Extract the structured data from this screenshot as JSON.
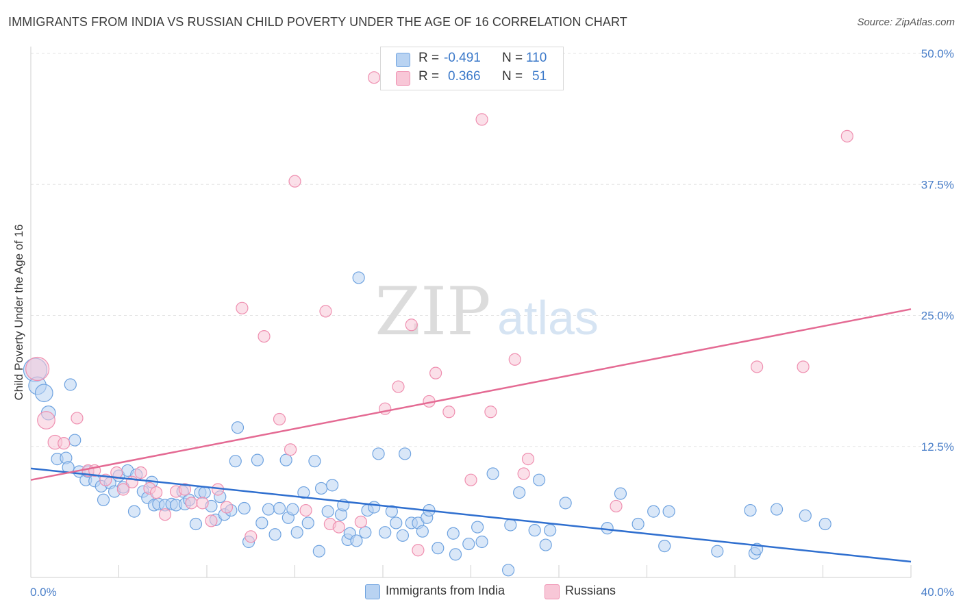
{
  "title": "IMMIGRANTS FROM INDIA VS RUSSIAN CHILD POVERTY UNDER THE AGE OF 16 CORRELATION CHART",
  "source": "Source: ZipAtlas.com",
  "watermark": {
    "zip": "ZIP",
    "atlas": "atlas"
  },
  "legend_top": [
    {
      "r_label": "R = ",
      "r_value": "-0.491",
      "n_label": "N = ",
      "n_value": "110",
      "color": "#6fa3e0"
    },
    {
      "r_label": "R = ",
      "r_value": "0.366",
      "n_label": "N = ",
      "n_value": "51",
      "color": "#ef8fb0"
    }
  ],
  "chart_data": {
    "type": "scatter",
    "title": "IMMIGRANTS FROM INDIA VS RUSSIAN CHILD POVERTY UNDER THE AGE OF 16 CORRELATION CHART",
    "xlabel": "",
    "ylabel": "Child Poverty Under the Age of 16",
    "xlim": [
      0,
      40
    ],
    "ylim": [
      0,
      50
    ],
    "x_tick_labels": [
      {
        "value": 0,
        "label": "0.0%"
      },
      {
        "value": 40,
        "label": "40.0%"
      }
    ],
    "y_tick_labels": [
      {
        "value": 50,
        "label": "50.0%"
      },
      {
        "value": 37.5,
        "label": "37.5%"
      },
      {
        "value": 25,
        "label": "25.0%"
      },
      {
        "value": 12.5,
        "label": "12.5%"
      }
    ],
    "grid": true,
    "legend_position": "bottom",
    "series": [
      {
        "name": "Immigrants from India",
        "color": "#6fa3e0",
        "fill": "#b9d3f2",
        "trend": {
          "x": [
            0,
            40
          ],
          "y": [
            10.4,
            1.5
          ],
          "color": "#2f6fcf"
        },
        "points": [
          [
            0.2,
            19.8,
            2
          ],
          [
            0.3,
            18.3,
            1.5
          ],
          [
            0.6,
            17.6,
            1.5
          ],
          [
            0.8,
            15.7,
            1.2
          ],
          [
            1.8,
            18.4,
            1
          ],
          [
            1.2,
            11.3,
            1
          ],
          [
            1.6,
            11.4,
            1
          ],
          [
            1.7,
            10.5,
            1
          ],
          [
            2.0,
            13.1,
            1
          ],
          [
            2.2,
            10.1,
            1
          ],
          [
            2.5,
            9.3,
            1
          ],
          [
            2.6,
            10.1,
            1
          ],
          [
            2.9,
            9.2,
            1
          ],
          [
            3.2,
            8.7,
            1
          ],
          [
            3.3,
            7.4,
            1
          ],
          [
            3.6,
            9.0,
            1
          ],
          [
            3.8,
            8.2,
            1
          ],
          [
            4.0,
            9.7,
            1
          ],
          [
            4.2,
            8.6,
            1
          ],
          [
            4.4,
            10.2,
            1
          ],
          [
            4.7,
            6.3,
            1
          ],
          [
            4.8,
            9.8,
            1
          ],
          [
            5.1,
            8.2,
            1
          ],
          [
            5.3,
            7.6,
            1
          ],
          [
            5.5,
            9.1,
            1
          ],
          [
            5.6,
            6.9,
            1
          ],
          [
            5.8,
            7.0,
            1
          ],
          [
            6.1,
            6.9,
            1
          ],
          [
            6.4,
            7.0,
            1
          ],
          [
            6.6,
            6.9,
            1
          ],
          [
            6.9,
            8.2,
            1
          ],
          [
            7.0,
            7.0,
            1
          ],
          [
            7.2,
            7.4,
            1
          ],
          [
            7.5,
            5.1,
            1
          ],
          [
            7.7,
            8.1,
            1
          ],
          [
            7.9,
            8.1,
            1
          ],
          [
            8.2,
            6.8,
            1
          ],
          [
            8.4,
            5.5,
            1
          ],
          [
            8.6,
            7.7,
            1
          ],
          [
            8.8,
            6.0,
            1
          ],
          [
            9.1,
            6.4,
            1
          ],
          [
            9.3,
            11.1,
            1
          ],
          [
            9.4,
            14.3,
            1
          ],
          [
            9.7,
            6.6,
            1
          ],
          [
            9.9,
            3.4,
            1
          ],
          [
            10.3,
            11.2,
            1
          ],
          [
            10.5,
            5.2,
            1
          ],
          [
            10.8,
            6.5,
            1
          ],
          [
            11.1,
            4.1,
            1
          ],
          [
            11.3,
            6.6,
            1
          ],
          [
            11.6,
            11.2,
            1
          ],
          [
            11.7,
            5.7,
            1
          ],
          [
            11.9,
            6.5,
            1
          ],
          [
            12.1,
            4.3,
            1
          ],
          [
            12.4,
            8.1,
            1
          ],
          [
            12.6,
            5.2,
            1
          ],
          [
            12.9,
            11.1,
            1
          ],
          [
            13.1,
            2.5,
            1
          ],
          [
            13.2,
            8.5,
            1
          ],
          [
            13.5,
            6.3,
            1
          ],
          [
            13.7,
            8.8,
            1
          ],
          [
            14.1,
            6.0,
            1
          ],
          [
            14.2,
            6.9,
            1
          ],
          [
            14.4,
            3.6,
            1
          ],
          [
            14.5,
            4.2,
            1
          ],
          [
            14.8,
            3.5,
            1
          ],
          [
            14.9,
            28.6,
            1
          ],
          [
            15.2,
            4.3,
            1
          ],
          [
            15.3,
            6.4,
            1
          ],
          [
            15.6,
            6.7,
            1
          ],
          [
            15.8,
            11.8,
            1
          ],
          [
            16.1,
            4.3,
            1
          ],
          [
            16.4,
            6.3,
            1
          ],
          [
            16.6,
            5.2,
            1
          ],
          [
            16.9,
            4.0,
            1
          ],
          [
            17.0,
            11.8,
            1
          ],
          [
            17.3,
            5.2,
            1
          ],
          [
            17.6,
            5.2,
            1
          ],
          [
            17.8,
            4.4,
            1
          ],
          [
            18.0,
            5.7,
            1
          ],
          [
            18.1,
            6.4,
            1
          ],
          [
            18.5,
            2.8,
            1
          ],
          [
            19.2,
            4.2,
            1
          ],
          [
            19.3,
            2.2,
            1
          ],
          [
            19.9,
            3.2,
            1
          ],
          [
            20.3,
            4.8,
            1
          ],
          [
            20.5,
            3.4,
            1
          ],
          [
            21.0,
            9.9,
            1
          ],
          [
            21.7,
            0.7,
            1
          ],
          [
            21.8,
            5.0,
            1
          ],
          [
            22.2,
            8.1,
            1
          ],
          [
            22.9,
            4.5,
            1
          ],
          [
            23.1,
            9.3,
            1
          ],
          [
            23.4,
            3.1,
            1
          ],
          [
            23.6,
            4.5,
            1
          ],
          [
            24.3,
            7.1,
            1
          ],
          [
            26.2,
            4.7,
            1
          ],
          [
            26.8,
            8.0,
            1
          ],
          [
            27.6,
            5.1,
            1
          ],
          [
            28.3,
            6.3,
            1
          ],
          [
            28.8,
            3.0,
            1
          ],
          [
            29.0,
            6.3,
            1
          ],
          [
            31.2,
            2.5,
            1
          ],
          [
            32.7,
            6.4,
            1
          ],
          [
            32.9,
            2.3,
            1
          ],
          [
            33.0,
            2.7,
            1
          ],
          [
            33.9,
            6.5,
            1
          ],
          [
            35.2,
            5.9,
            1
          ],
          [
            36.1,
            5.1,
            1
          ]
        ]
      },
      {
        "name": "Russians",
        "color": "#ef8fb0",
        "fill": "#f8c7d7",
        "trend": {
          "x": [
            0,
            40
          ],
          "y": [
            9.3,
            25.6
          ],
          "color": "#e46a93"
        },
        "points": [
          [
            0.3,
            19.9,
            2
          ],
          [
            0.7,
            15.0,
            1.5
          ],
          [
            1.1,
            12.9,
            1.2
          ],
          [
            1.5,
            12.8,
            1
          ],
          [
            2.1,
            15.2,
            1
          ],
          [
            2.6,
            10.2,
            1
          ],
          [
            2.9,
            10.2,
            1
          ],
          [
            3.4,
            9.3,
            1
          ],
          [
            3.9,
            10.0,
            1
          ],
          [
            4.2,
            8.4,
            1
          ],
          [
            4.6,
            9.1,
            1
          ],
          [
            5.0,
            10.0,
            1
          ],
          [
            5.4,
            8.5,
            1
          ],
          [
            5.7,
            8.1,
            1
          ],
          [
            6.1,
            6.0,
            1
          ],
          [
            6.6,
            8.2,
            1
          ],
          [
            7.0,
            8.4,
            1
          ],
          [
            7.3,
            7.1,
            1
          ],
          [
            7.8,
            7.1,
            1
          ],
          [
            8.2,
            5.4,
            1
          ],
          [
            8.5,
            8.4,
            1
          ],
          [
            8.9,
            6.7,
            1
          ],
          [
            9.6,
            25.7,
            1
          ],
          [
            10.0,
            3.9,
            1
          ],
          [
            10.6,
            23.0,
            1
          ],
          [
            11.3,
            15.1,
            1
          ],
          [
            11.8,
            12.2,
            1
          ],
          [
            12.0,
            37.8,
            1
          ],
          [
            12.5,
            6.4,
            1
          ],
          [
            13.4,
            25.4,
            1
          ],
          [
            13.6,
            5.1,
            1
          ],
          [
            14.0,
            4.8,
            1
          ],
          [
            15.0,
            5.3,
            1
          ],
          [
            15.6,
            47.7,
            1
          ],
          [
            16.1,
            16.1,
            1
          ],
          [
            16.7,
            18.2,
            1
          ],
          [
            17.3,
            24.1,
            1
          ],
          [
            17.6,
            2.6,
            1
          ],
          [
            18.1,
            16.8,
            1
          ],
          [
            18.4,
            19.5,
            1
          ],
          [
            19.0,
            15.8,
            1
          ],
          [
            20.0,
            9.3,
            1
          ],
          [
            20.5,
            43.7,
            1
          ],
          [
            20.9,
            15.8,
            1
          ],
          [
            22.0,
            20.8,
            1
          ],
          [
            22.4,
            9.9,
            1
          ],
          [
            22.6,
            11.3,
            1
          ],
          [
            26.6,
            6.8,
            1
          ],
          [
            33.0,
            20.1,
            1
          ],
          [
            35.1,
            20.1,
            1
          ],
          [
            37.1,
            42.1,
            1
          ]
        ]
      }
    ]
  },
  "bottom_legend": [
    {
      "label": "Immigrants from India",
      "color": "#6fa3e0",
      "fill": "#b9d3f2"
    },
    {
      "label": "Russians",
      "color": "#ef8fb0",
      "fill": "#f8c7d7"
    }
  ]
}
